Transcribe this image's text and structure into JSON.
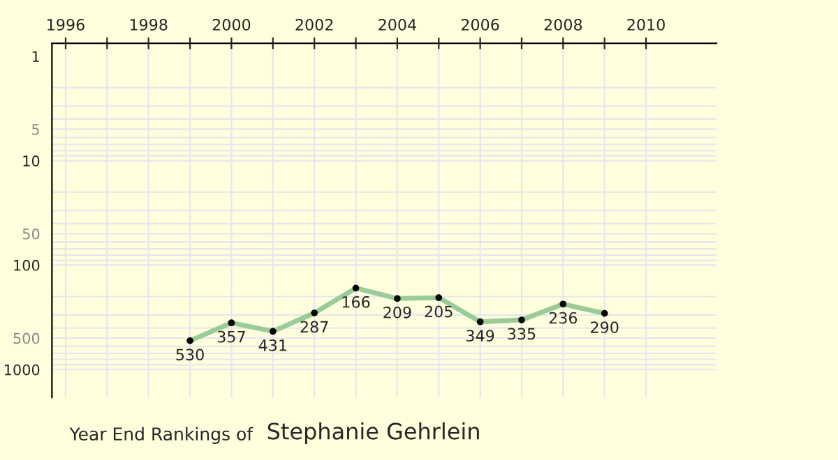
{
  "chart_data": {
    "type": "line",
    "title": "Year End Rankings of",
    "subtitle": "Stephanie Gehrlein",
    "x": [
      1999,
      2000,
      2001,
      2002,
      2003,
      2004,
      2005,
      2006,
      2007,
      2008,
      2009
    ],
    "series": [
      {
        "color": "#99cc99",
        "values": [
          530,
          357,
          431,
          287,
          166,
          209,
          205,
          349,
          335,
          236,
          290
        ]
      }
    ],
    "data_labels": true,
    "marker": "circle",
    "line_style": "solid",
    "log": "y",
    "grid": true,
    "xlim": [
      1995.67,
      2011.7
    ],
    "xticks": [
      1996,
      {
        "value": 1997,
        "label": null
      },
      1998,
      {
        "value": 1999,
        "label": null
      },
      2000,
      {
        "value": 2001,
        "label": null
      },
      2002,
      {
        "value": 2003,
        "label": null
      },
      2004,
      {
        "value": 2005,
        "label": null
      },
      2006,
      {
        "value": 2007,
        "label": null
      },
      2008,
      {
        "value": 2009,
        "label": null
      },
      2010
    ],
    "ylim": [
      1850,
      0.75
    ],
    "yticks": [
      1,
      5,
      10,
      50,
      100,
      500,
      1000
    ]
  }
}
